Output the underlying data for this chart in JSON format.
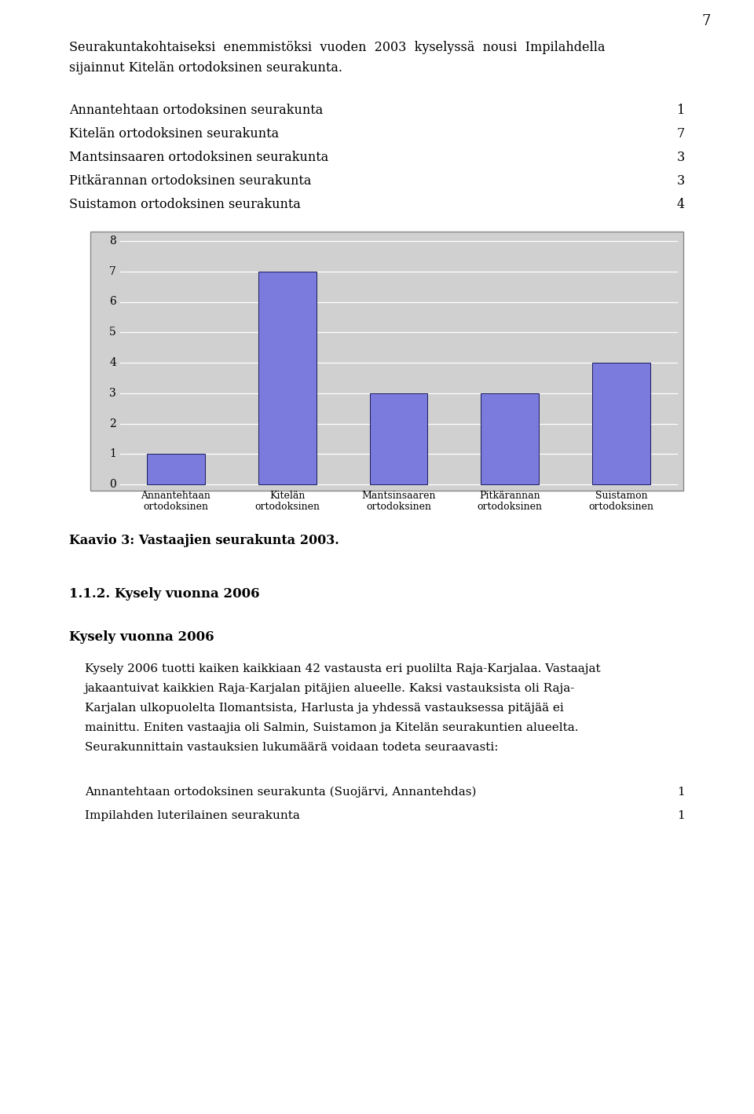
{
  "page_number": "7",
  "intro_line1": "Seurakuntakohtaiseksi  enemmistöksi  vuoden  2003  kyselyssä  nousi  Impilahdella",
  "intro_line2": "sijainnut Kitelän ortodoksinen seurakunta.",
  "table_items": [
    {
      "label": "Annantehtaan ortodoksinen seurakunta",
      "value": "1"
    },
    {
      "label": "Kitelän ortodoksinen seurakunta",
      "value": "7"
    },
    {
      "label": "Mantsinsaaren ortodoksinen seurakunta",
      "value": "3"
    },
    {
      "label": "Pitkärannan ortodoksinen seurakunta",
      "value": "3"
    },
    {
      "label": "Suistamon ortodoksinen seurakunta",
      "value": "4"
    }
  ],
  "bar_values": [
    1,
    7,
    3,
    3,
    4
  ],
  "bar_xlabels": [
    "Annantehtaan\nortodoksinen",
    "Kitelän\nortodoksinen",
    "Mantsinsaaren\nortodoksinen",
    "Pitkärannan\nortodoksinen",
    "Suistamon\nortodoksinen"
  ],
  "bar_color": "#7b7bdd",
  "bar_edge_color": "#1a1a5e",
  "chart_bg_color": "#d0d0d0",
  "chart_border_color": "#888888",
  "y_max": 8,
  "yticks": [
    0,
    1,
    2,
    3,
    4,
    5,
    6,
    7,
    8
  ],
  "caption": "Kaavio 3: Vastaajien seurakunta 2003.",
  "section_heading": "1.1.2. Kysely vuonna 2006",
  "body_bold": "Kysely vuonna 2006",
  "body_lines": [
    "Kysely 2006 tuotti kaiken kaikkiaan 42 vastausta eri puolilta Raja-Karjalaa. Vastaajat",
    "jakaantuivat kaikkien Raja-Karjalan pitäjien alueelle. Kaksi vastauksista oli Raja-",
    "Karjalan ulkopuolelta Ilomantsista, Harlusta ja yhdessä vastauksessa pitäjää ei",
    "mainittu. Eniten vastaajia oli Salmin, Suistamon ja Kitelän seurakuntien alueelta.",
    "Seurakunnittain vastauksien lukumäärä voidaan todeta seuraavasti:"
  ],
  "footer_items": [
    {
      "label": "Annantehtaan ortodoksinen seurakunta (Suojärvi, Annantehdas)",
      "value": "1"
    },
    {
      "label": "Impilahden luterilainen seurakunta",
      "value": "1"
    }
  ],
  "text_color": "#000000",
  "lm": 88,
  "rm": 872,
  "chart_lm": 115,
  "chart_rm": 870
}
